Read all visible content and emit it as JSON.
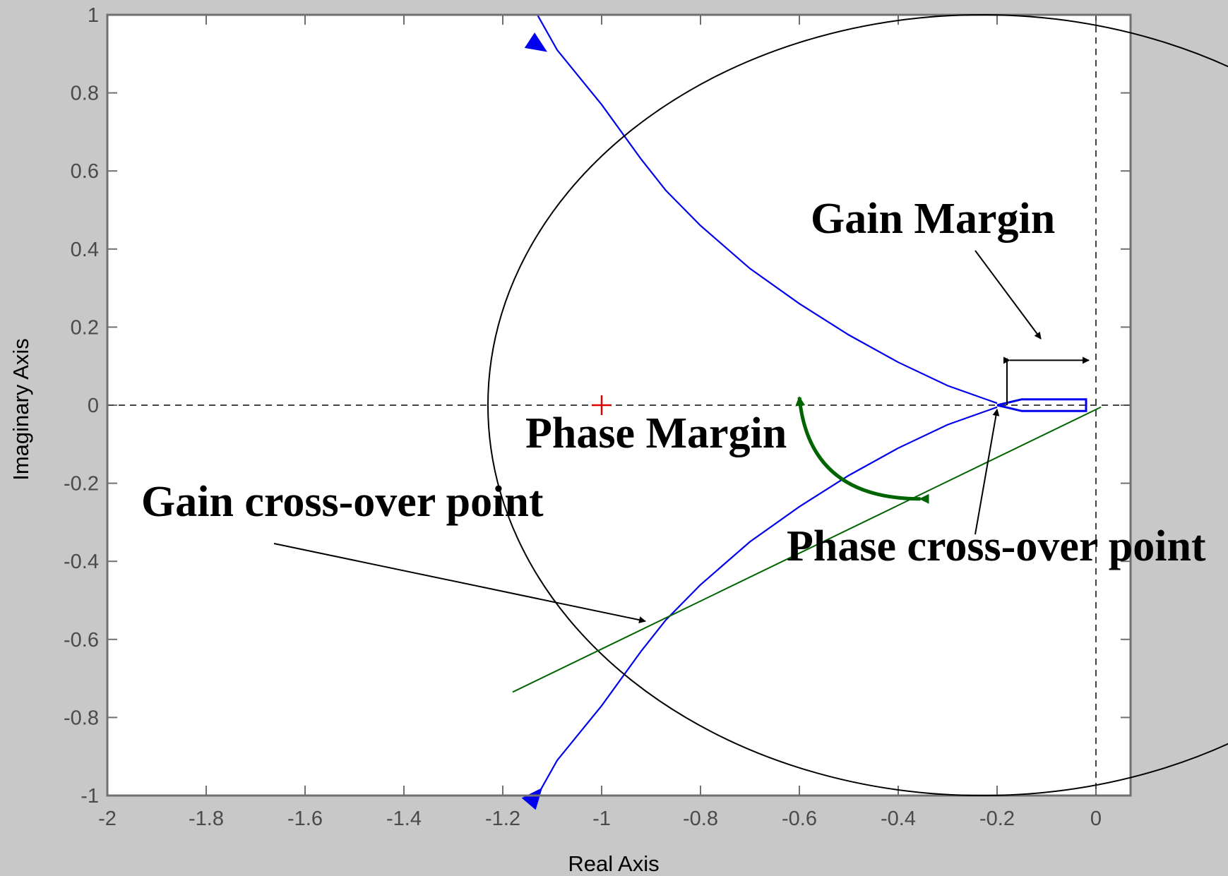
{
  "chart_data": {
    "type": "line",
    "title": "",
    "xlabel": "Real Axis",
    "ylabel": "Imaginary Axis",
    "xlim": [
      -2,
      0.07
    ],
    "ylim": [
      -1,
      1
    ],
    "xticks": [
      "-2",
      "-1.8",
      "-1.6",
      "-1.4",
      "-1.2",
      "-1",
      "-0.8",
      "-0.6",
      "-0.4",
      "-0.2",
      "0"
    ],
    "yticks": [
      "1",
      "0.8",
      "0.6",
      "0.4",
      "0.2",
      "0",
      "-0.2",
      "-0.4",
      "-0.6",
      "-0.8",
      "-1"
    ],
    "grid": false,
    "legend": "none",
    "critical_point": [
      -1,
      0
    ],
    "series": [
      {
        "color": "#0000ee",
        "upper_branch": [
          [
            -1.13,
            1.0
          ],
          [
            -1.09,
            0.91
          ],
          [
            -1.0,
            0.77
          ],
          [
            -0.92,
            0.63
          ],
          [
            -0.87,
            0.55
          ],
          [
            -0.8,
            0.46
          ],
          [
            -0.7,
            0.35
          ],
          [
            -0.6,
            0.26
          ],
          [
            -0.5,
            0.18
          ],
          [
            -0.4,
            0.11
          ],
          [
            -0.3,
            0.05
          ],
          [
            -0.2,
            0.005
          ]
        ],
        "lower_branch": [
          [
            -1.13,
            -1.0
          ],
          [
            -1.09,
            -0.91
          ],
          [
            -1.0,
            -0.77
          ],
          [
            -0.92,
            -0.63
          ],
          [
            -0.87,
            -0.55
          ],
          [
            -0.8,
            -0.46
          ],
          [
            -0.7,
            -0.35
          ],
          [
            -0.6,
            -0.26
          ],
          [
            -0.5,
            -0.18
          ],
          [
            -0.4,
            -0.11
          ],
          [
            -0.3,
            -0.05
          ],
          [
            -0.2,
            -0.005
          ]
        ],
        "loop": [
          [
            -0.2,
            0.0
          ],
          [
            -0.15,
            0.015
          ],
          [
            -0.02,
            0.015
          ],
          [
            -0.02,
            -0.015
          ],
          [
            -0.15,
            -0.015
          ],
          [
            -0.2,
            0.0
          ]
        ]
      }
    ],
    "unit_circle": {
      "center": [
        -0.23,
        0
      ],
      "radius": 1.0,
      "color": "#000000"
    },
    "phase_line": {
      "from": [
        0.01,
        -0.005
      ],
      "to": [
        -1.18,
        -0.735
      ],
      "color": "#006400"
    },
    "phase_arc_color": "#006400",
    "annotations": {
      "gain_margin": "Gain Margin",
      "phase_margin": "Phase Margin",
      "gain_crossover": "Gain cross-over point",
      "phase_crossover": "Phase cross-over point"
    }
  }
}
